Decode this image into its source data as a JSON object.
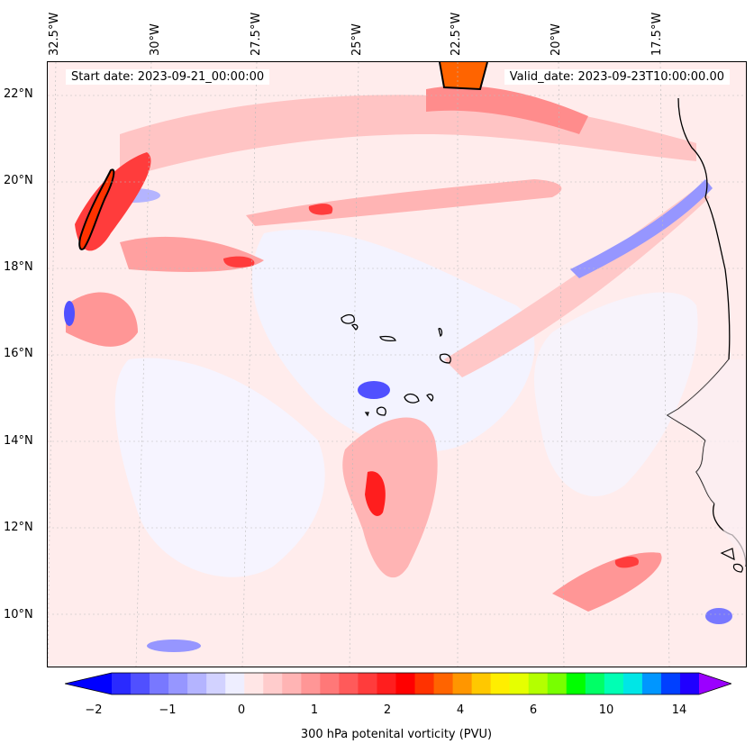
{
  "map": {
    "title": "300 hPa potenital vorticity (PVU)",
    "start_date": "Start date: 2023-09-21_00:00:00",
    "valid_date": "Valid_date: 2023-09-23T10:00:00.00",
    "lon_labels": [
      "32.5°W",
      "30°W",
      "27.5°W",
      "25°W",
      "22.5°W",
      "20°W",
      "17.5°W"
    ],
    "lat_labels": [
      "22°N",
      "20°N",
      "18°N",
      "16°N",
      "14°N",
      "12°N",
      "10°N"
    ],
    "extent": {
      "lon_min": -32.7,
      "lon_max": -16.3,
      "lat_min": 8.9,
      "lat_max": 22.8
    }
  },
  "colorbar": {
    "tick_labels": [
      "−2",
      "−1",
      "0",
      "1",
      "2",
      "4",
      "6",
      "10",
      "14"
    ],
    "colors": [
      "#0000ff",
      "#2a2aff",
      "#5050ff",
      "#7878ff",
      "#9696ff",
      "#b4b4ff",
      "#d2d2ff",
      "#eeeeff",
      "#ffe6e6",
      "#ffcccc",
      "#ffb4b4",
      "#ff9696",
      "#ff7878",
      "#ff5a5a",
      "#ff3c3c",
      "#ff1e1e",
      "#ff0000",
      "#ff3200",
      "#ff6400",
      "#ff9600",
      "#ffc800",
      "#ffee00",
      "#e6ff00",
      "#b4ff00",
      "#78ff00",
      "#00ff00",
      "#00ff66",
      "#00ffb4",
      "#00e6e6",
      "#0096ff",
      "#0040ff",
      "#2000ff",
      "#9b00ff"
    ]
  }
}
